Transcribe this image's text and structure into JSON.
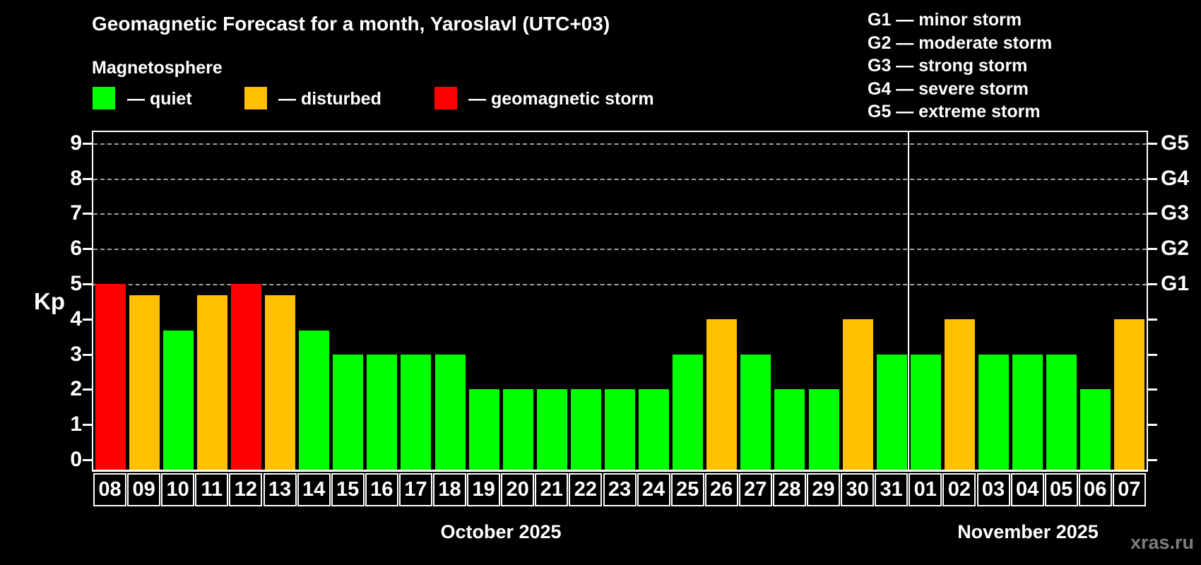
{
  "header": {
    "title": "Geomagnetic Forecast for a month, Yaroslavl (UTC+03)",
    "subtitle": "Magnetosphere"
  },
  "legend": {
    "quiet": {
      "label": "— quiet",
      "color": "#00ff00"
    },
    "disturbed": {
      "label": "— disturbed",
      "color": "#ffc000"
    },
    "storm": {
      "label": "— geomagnetic storm",
      "color": "#ff0000"
    }
  },
  "g_scale_legend": {
    "items": [
      {
        "label": "G1 — minor storm"
      },
      {
        "label": "G2 — moderate storm"
      },
      {
        "label": "G3 — strong storm"
      },
      {
        "label": "G4 — severe storm"
      },
      {
        "label": "G5 — extreme storm"
      }
    ]
  },
  "watermark": "xras.ru",
  "chart_data": {
    "type": "bar",
    "title": "Geomagnetic Forecast for a month, Yaroslavl (UTC+03)",
    "ylabel": "Kp",
    "xlabel": "",
    "ylim": [
      -0.35,
      9.7
    ],
    "yticks": [
      0,
      1,
      2,
      3,
      4,
      5,
      6,
      7,
      8,
      9
    ],
    "grid": "horizontal dashed lines at Kp 5-9 (G1-G5 storm levels)",
    "legend_position": "top",
    "right_axis": [
      {
        "label": "G1",
        "kp": 5
      },
      {
        "label": "G2",
        "kp": 6
      },
      {
        "label": "G3",
        "kp": 7
      },
      {
        "label": "G4",
        "kp": 8
      },
      {
        "label": "G5",
        "kp": 9
      }
    ],
    "status_colors": {
      "quiet": "#00ff00",
      "disturbed": "#ffc000",
      "storm": "#ff0000"
    },
    "months": [
      {
        "label": "October 2025",
        "days": 24
      },
      {
        "label": "November 2025",
        "days": 7
      }
    ],
    "bars": [
      {
        "day": "08",
        "value": 5,
        "status": "storm"
      },
      {
        "day": "09",
        "value": 4.67,
        "status": "disturbed"
      },
      {
        "day": "10",
        "value": 3.67,
        "status": "quiet"
      },
      {
        "day": "11",
        "value": 4.67,
        "status": "disturbed"
      },
      {
        "day": "12",
        "value": 5,
        "status": "storm"
      },
      {
        "day": "13",
        "value": 4.67,
        "status": "disturbed"
      },
      {
        "day": "14",
        "value": 3.67,
        "status": "quiet"
      },
      {
        "day": "15",
        "value": 3,
        "status": "quiet"
      },
      {
        "day": "16",
        "value": 3,
        "status": "quiet"
      },
      {
        "day": "17",
        "value": 3,
        "status": "quiet"
      },
      {
        "day": "18",
        "value": 3,
        "status": "quiet"
      },
      {
        "day": "19",
        "value": 2,
        "status": "quiet"
      },
      {
        "day": "20",
        "value": 2,
        "status": "quiet"
      },
      {
        "day": "21",
        "value": 2,
        "status": "quiet"
      },
      {
        "day": "22",
        "value": 2,
        "status": "quiet"
      },
      {
        "day": "23",
        "value": 2,
        "status": "quiet"
      },
      {
        "day": "24",
        "value": 2,
        "status": "quiet"
      },
      {
        "day": "25",
        "value": 3,
        "status": "quiet"
      },
      {
        "day": "26",
        "value": 4,
        "status": "disturbed"
      },
      {
        "day": "27",
        "value": 3,
        "status": "quiet"
      },
      {
        "day": "28",
        "value": 2,
        "status": "quiet"
      },
      {
        "day": "29",
        "value": 2,
        "status": "quiet"
      },
      {
        "day": "30",
        "value": 4,
        "status": "disturbed"
      },
      {
        "day": "31",
        "value": 3,
        "status": "quiet"
      },
      {
        "day": "01",
        "value": 3,
        "status": "quiet"
      },
      {
        "day": "02",
        "value": 4,
        "status": "disturbed"
      },
      {
        "day": "03",
        "value": 3,
        "status": "quiet"
      },
      {
        "day": "04",
        "value": 3,
        "status": "quiet"
      },
      {
        "day": "05",
        "value": 3,
        "status": "quiet"
      },
      {
        "day": "06",
        "value": 2,
        "status": "quiet"
      },
      {
        "day": "07",
        "value": 4,
        "status": "disturbed"
      }
    ]
  }
}
